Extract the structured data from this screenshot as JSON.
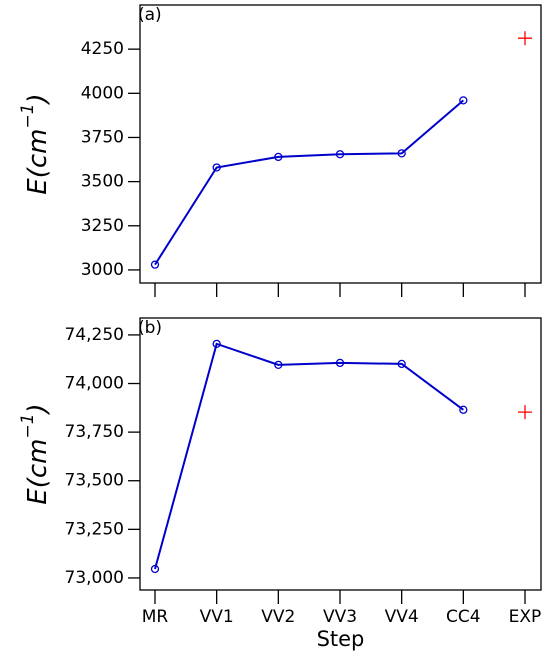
{
  "chart_data": [
    {
      "type": "line",
      "panel_label": "(a)",
      "y_label": {
        "base": "E(cm",
        "sup": "−1",
        "close": ")"
      },
      "categories": [
        null,
        null,
        null,
        null,
        null,
        null,
        null
      ],
      "series": [
        {
          "color": "#0000cc",
          "marker": "circle",
          "values": [
            3030,
            3580,
            3640,
            3655,
            3660,
            3960,
            null
          ]
        },
        {
          "color": "#ff0000",
          "marker": "plus",
          "values": [
            null,
            null,
            null,
            null,
            null,
            null,
            4312
          ]
        }
      ],
      "ylim": [
        2926,
        4500
      ],
      "yticks": [
        3000,
        3250,
        3500,
        3750,
        4000,
        4250
      ]
    },
    {
      "type": "line",
      "panel_label": "(b)",
      "y_label": {
        "base": "E(cm",
        "sup": "−1",
        "close": ")"
      },
      "x_label": "Step",
      "categories": [
        "MR",
        "VV1",
        "VV2",
        "VV3",
        "VV4",
        "CC4",
        "EXP"
      ],
      "series": [
        {
          "color": "#0000cc",
          "marker": "circle",
          "values": [
            73046,
            74204,
            74096,
            74106,
            74101,
            73865,
            null
          ]
        },
        {
          "color": "#ff0000",
          "marker": "plus",
          "values": [
            null,
            null,
            null,
            null,
            null,
            null,
            73853
          ]
        }
      ],
      "ylim": [
        72938,
        74337
      ],
      "yticks": [
        {
          "value": 73000,
          "label": "73,000"
        },
        {
          "value": 73250,
          "label": "73,250"
        },
        {
          "value": 73500,
          "label": "73,500"
        },
        {
          "value": 73750,
          "label": "73,750"
        },
        {
          "value": 74000,
          "label": "74,000"
        },
        {
          "value": 74250,
          "label": "74,250"
        }
      ]
    }
  ]
}
